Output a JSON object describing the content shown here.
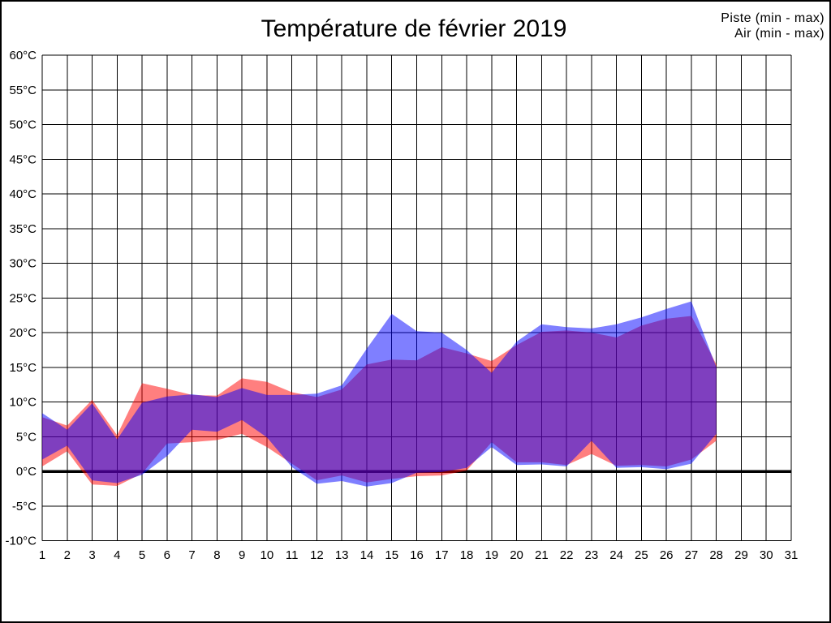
{
  "title": "Température de février 2019",
  "legend": {
    "piste": {
      "label": "Piste (min - max)",
      "color": "#FF0000"
    },
    "air": {
      "label": "Air (min - max)",
      "color": "#0000FF"
    }
  },
  "chart_data": {
    "type": "area",
    "title": "Température de février 2019",
    "description": "Daily min-max temperature bands for February 2019. Red band = piste temperature range, blue band = air temperature range; overlap appears purple. X axis = day of month, Y axis = °C.",
    "x": [
      1,
      2,
      3,
      4,
      5,
      6,
      7,
      8,
      9,
      10,
      11,
      12,
      13,
      14,
      15,
      16,
      17,
      18,
      19,
      20,
      21,
      22,
      23,
      24,
      25,
      26,
      27,
      28
    ],
    "series": [
      {
        "name": "Piste (min - max)",
        "color": "#FF0000",
        "min": [
          0.7,
          2.9,
          -1.9,
          -2.1,
          -0.3,
          4.0,
          4.2,
          4.5,
          5.4,
          3.5,
          1.1,
          -1.3,
          -0.6,
          -1.6,
          -1.1,
          -0.7,
          -0.6,
          0.1,
          4.2,
          1.3,
          1.3,
          0.9,
          2.5,
          0.8,
          0.9,
          0.7,
          1.7,
          4.4
        ],
        "max": [
          7.8,
          6.6,
          10.3,
          5.2,
          12.7,
          11.9,
          11.0,
          10.9,
          13.4,
          12.9,
          11.4,
          10.7,
          11.8,
          15.4,
          16.1,
          16.0,
          17.9,
          17.0,
          15.9,
          18.2,
          20.1,
          20.3,
          20.0,
          19.3,
          21.0,
          22.0,
          22.4,
          15.4
        ]
      },
      {
        "name": "Air (min - max)",
        "color": "#0000FF",
        "min": [
          1.7,
          3.7,
          -1.3,
          -1.7,
          -0.5,
          2.2,
          6.0,
          5.7,
          7.4,
          4.9,
          0.6,
          -1.8,
          -1.4,
          -2.2,
          -1.7,
          -0.2,
          -0.1,
          0.5,
          3.5,
          0.9,
          1.0,
          0.7,
          4.4,
          0.5,
          0.6,
          0.3,
          1.1,
          5.4
        ],
        "max": [
          8.4,
          6.0,
          9.8,
          4.6,
          9.9,
          10.8,
          11.1,
          10.7,
          12.0,
          11.0,
          11.0,
          11.2,
          12.4,
          17.7,
          22.7,
          20.2,
          20.0,
          17.5,
          14.2,
          18.7,
          21.2,
          20.8,
          20.6,
          21.2,
          22.2,
          23.4,
          24.5,
          15.0
        ]
      }
    ],
    "x_ticks": [
      "1",
      "2",
      "3",
      "4",
      "5",
      "6",
      "7",
      "8",
      "9",
      "10",
      "11",
      "12",
      "13",
      "14",
      "15",
      "16",
      "17",
      "18",
      "19",
      "20",
      "21",
      "22",
      "23",
      "24",
      "25",
      "26",
      "27",
      "28",
      "29",
      "30",
      "31"
    ],
    "y_ticks": [
      {
        "value": 60,
        "label": "60°C"
      },
      {
        "value": 55,
        "label": "55°C"
      },
      {
        "value": 50,
        "label": "50°C"
      },
      {
        "value": 45,
        "label": "45°C"
      },
      {
        "value": 40,
        "label": "40°C"
      },
      {
        "value": 35,
        "label": "35°C"
      },
      {
        "value": 30,
        "label": "30°C"
      },
      {
        "value": 25,
        "label": "25°C"
      },
      {
        "value": 20,
        "label": "20°C"
      },
      {
        "value": 15,
        "label": "15°C"
      },
      {
        "value": 10,
        "label": "10°C"
      },
      {
        "value": 5,
        "label": "5°C"
      },
      {
        "value": 0,
        "label": "0°C"
      },
      {
        "value": -5,
        "label": "-5°C"
      },
      {
        "value": -10,
        "label": "-10°C"
      }
    ],
    "xlim": [
      1,
      31
    ],
    "ylim": [
      -10,
      60
    ],
    "grid": true,
    "zero_line_value": 0,
    "legend_position": "top-right"
  }
}
